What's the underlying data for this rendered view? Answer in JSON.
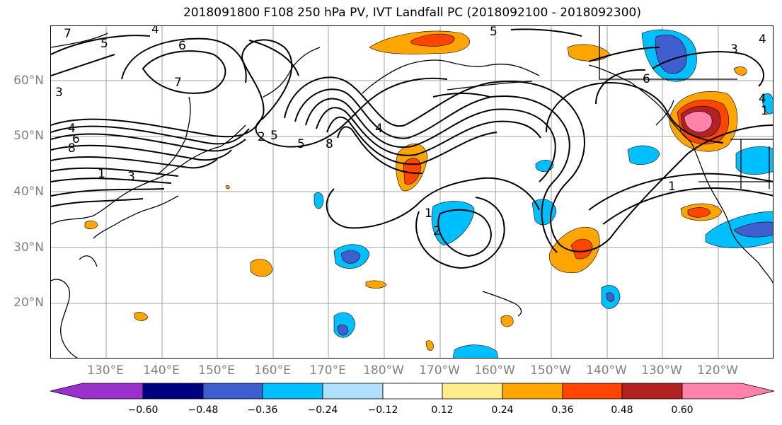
{
  "title": "2018091800 F108 250 hPa PV, IVT Landfall PC (2018092100 - 2018092300)",
  "lat_labels": [
    "60°N",
    "50°N",
    "40°N",
    "30°N",
    "20°N"
  ],
  "lon_labels": [
    "130°E",
    "140°E",
    "150°E",
    "160°E",
    "170°E",
    "180°W",
    "170°W",
    "160°W",
    "150°W",
    "140°W",
    "130°W",
    "120°W"
  ],
  "colorbar": {
    "ticks": [
      "−0.60",
      "−0.48",
      "−0.36",
      "−0.24",
      "−0.12",
      "0.12",
      "0.24",
      "0.36",
      "0.48",
      "0.60"
    ],
    "colors": [
      "#9932cc",
      "#000080",
      "#3f5fcf",
      "#00bfff",
      "#b0e0ff",
      "#ffffff",
      "#ffec8b",
      "#ffa500",
      "#ff4500",
      "#b22222",
      "#ff82ab"
    ]
  },
  "contour_labels": [
    "7",
    "5",
    "4",
    "6",
    "7",
    "5",
    "3",
    "3",
    "4",
    "6",
    "8",
    "2",
    "5",
    "5",
    "8",
    "4",
    "1",
    "6",
    "4",
    "1",
    "2",
    "1",
    "3",
    "4",
    "1"
  ]
}
